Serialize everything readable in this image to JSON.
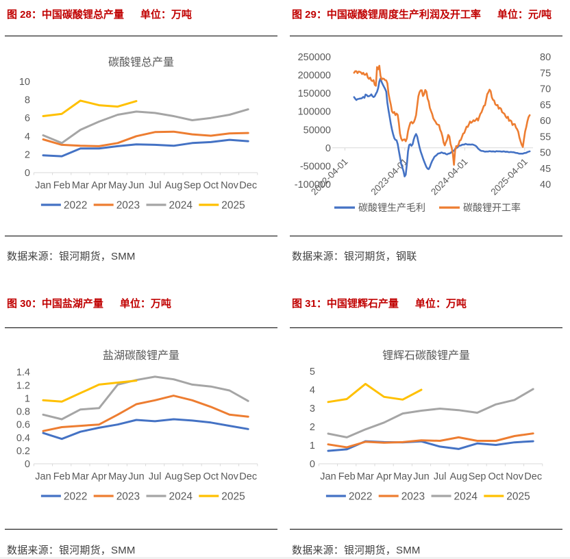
{
  "page": {
    "background": "#ffffff",
    "accent_red": "#C00000",
    "text_gray": "#595959",
    "source_text_color": "#404040",
    "axis_line_color": "#D9D9D9",
    "rule_color": "#000000"
  },
  "panels": [
    {
      "id": "fig28",
      "header": "图 28：中国碳酸锂总产量",
      "unit": "单位：万吨",
      "source": "数据来源：银河期货，SMM"
    },
    {
      "id": "fig29",
      "header": "图 29：中国碳酸锂周度生产利润及开工率",
      "unit": "单位：元/吨",
      "source": "数据来源：银河期货，钢联"
    },
    {
      "id": "fig30",
      "header": "图 30：中国盐湖产量",
      "unit": "单位：万吨",
      "source": "数据来源：银河期货，SMM"
    },
    {
      "id": "fig31",
      "header": "图 31：中国锂辉石产量",
      "unit": "单位：万吨",
      "source": "数据来源：银河期货，SMM"
    }
  ],
  "chart_data": [
    {
      "id": "fig28",
      "type": "line",
      "title": "碳酸锂总产量",
      "categories": [
        "Jan",
        "Feb",
        "Mar",
        "Apr",
        "May",
        "Jun",
        "Jul",
        "Aug",
        "Sep",
        "Oct",
        "Nov",
        "Dec"
      ],
      "series": [
        {
          "name": "2022",
          "color": "#4472C4",
          "values": [
            1.9,
            1.8,
            2.65,
            2.65,
            2.9,
            3.1,
            3.05,
            2.95,
            3.25,
            3.35,
            3.6,
            3.45
          ]
        },
        {
          "name": "2023",
          "color": "#ED7D31",
          "values": [
            3.65,
            3.05,
            2.95,
            2.9,
            3.25,
            4.0,
            4.45,
            4.5,
            4.2,
            4.05,
            4.3,
            4.35
          ]
        },
        {
          "name": "2024",
          "color": "#A5A5A5",
          "values": [
            4.1,
            3.25,
            4.7,
            5.6,
            6.35,
            6.7,
            6.55,
            6.2,
            5.75,
            6.0,
            6.35,
            6.95
          ]
        },
        {
          "name": "2025",
          "color": "#FFC000",
          "values": [
            6.2,
            6.45,
            7.9,
            7.4,
            7.25,
            7.85
          ]
        }
      ],
      "ylim": [
        0,
        10
      ],
      "yticks": [
        0,
        2,
        4,
        6,
        8,
        10
      ],
      "ytick_labels": [
        "0",
        "2",
        "4",
        "6",
        "8",
        "10"
      ],
      "xlabel": "",
      "ylabel": "",
      "grid": false,
      "legend_position": "bottom",
      "legend": [
        "2022",
        "2023",
        "2024",
        "2025"
      ]
    },
    {
      "id": "fig29",
      "type": "line",
      "title": "",
      "x": [
        "2022-05-27",
        "2022-06-03",
        "2022-06-10",
        "2022-06-17",
        "2022-06-24",
        "2022-07-01",
        "2022-07-08",
        "2022-07-15",
        "2022-07-22",
        "2022-07-29",
        "2022-08-05",
        "2022-08-12",
        "2022-08-19",
        "2022-08-26",
        "2022-09-02",
        "2022-09-09",
        "2022-09-16",
        "2022-09-23",
        "2022-09-30",
        "2022-10-07",
        "2022-10-14",
        "2022-10-21",
        "2022-10-28",
        "2022-11-04",
        "2022-11-11",
        "2022-11-18",
        "2022-11-25",
        "2022-12-02",
        "2022-12-09",
        "2022-12-16",
        "2022-12-23",
        "2022-12-30",
        "2023-01-06",
        "2023-01-13",
        "2023-01-20",
        "2023-01-27",
        "2023-02-03",
        "2023-02-10",
        "2023-02-17",
        "2023-02-24",
        "2023-03-03",
        "2023-03-10",
        "2023-03-17",
        "2023-03-24",
        "2023-03-31",
        "2023-04-07",
        "2023-04-14",
        "2023-04-21",
        "2023-04-28",
        "2023-05-05",
        "2023-05-12",
        "2023-05-19",
        "2023-05-26",
        "2023-06-02",
        "2023-06-09",
        "2023-06-16",
        "2023-06-23",
        "2023-06-30",
        "2023-07-07",
        "2023-07-14",
        "2023-07-21",
        "2023-07-28",
        "2023-08-04",
        "2023-08-11",
        "2023-08-18",
        "2023-08-25",
        "2023-09-01",
        "2023-09-08",
        "2023-09-15",
        "2023-09-22",
        "2023-09-29",
        "2023-10-06",
        "2023-10-13",
        "2023-10-20",
        "2023-10-27",
        "2023-11-03",
        "2023-11-10",
        "2023-11-17",
        "2023-11-24",
        "2023-12-01",
        "2023-12-08",
        "2023-12-15",
        "2023-12-22",
        "2023-12-29",
        "2024-01-05",
        "2024-01-12",
        "2024-01-19",
        "2024-01-26",
        "2024-02-02",
        "2024-02-09",
        "2024-02-16",
        "2024-02-23",
        "2024-03-01",
        "2024-03-08",
        "2024-03-15",
        "2024-03-22",
        "2024-03-29",
        "2024-04-05",
        "2024-04-12",
        "2024-04-19",
        "2024-04-26",
        "2024-05-03",
        "2024-05-10",
        "2024-05-17",
        "2024-05-24",
        "2024-05-31",
        "2024-06-07",
        "2024-06-14",
        "2024-06-21",
        "2024-06-28",
        "2024-07-05",
        "2024-07-12",
        "2024-07-19",
        "2024-07-26",
        "2024-08-02",
        "2024-08-09",
        "2024-08-16",
        "2024-08-23",
        "2024-08-30",
        "2024-09-06",
        "2024-09-13",
        "2024-09-20",
        "2024-09-27",
        "2024-10-04",
        "2024-10-11",
        "2024-10-18",
        "2024-10-25",
        "2024-11-01",
        "2024-11-08",
        "2024-11-15",
        "2024-11-22",
        "2024-11-29",
        "2024-12-06",
        "2024-12-13",
        "2024-12-20",
        "2024-12-27",
        "2025-01-03",
        "2025-01-10",
        "2025-01-17",
        "2025-01-24",
        "2025-01-31",
        "2025-02-07",
        "2025-02-14",
        "2025-02-21",
        "2025-02-28",
        "2025-03-07",
        "2025-03-14",
        "2025-03-21",
        "2025-03-28",
        "2025-04-04",
        "2025-04-11",
        "2025-04-18",
        "2025-04-25",
        "2025-05-02"
      ],
      "x_axis": {
        "start": "2022-01-14",
        "end": "2025-05-22",
        "ticks": [
          "2022-04-01",
          "2023-04-01",
          "2024-04-01",
          "2025-04-01"
        ]
      },
      "series": [
        {
          "name": "碳酸锂生产毛利",
          "axis": "left",
          "color": "#4472C4",
          "values": [
            139500,
            135000,
            131500,
            134000,
            134500,
            135500,
            135500,
            137000,
            140000,
            137500,
            146500,
            145000,
            141500,
            142000,
            143500,
            147000,
            142000,
            139500,
            142000,
            148500,
            154000,
            164500,
            182000,
            190500,
            181000,
            174000,
            168000,
            162000,
            154500,
            123500,
            103000,
            85000,
            66000,
            50500,
            37500,
            27000,
            22000,
            21000,
            10500,
            -8000,
            -25500,
            -43500,
            -53500,
            -63500,
            -78500,
            -73500,
            -44500,
            -9000,
            8000,
            10000,
            5500,
            10000,
            23500,
            32500,
            38000,
            31000,
            16000,
            2000,
            -10000,
            -19000,
            -28500,
            -37000,
            -45000,
            -52500,
            -57000,
            -58500,
            -52500,
            -43500,
            -36000,
            -30500,
            -24500,
            -22000,
            -19500,
            -16000,
            -15000,
            -14500,
            -12500,
            -13500,
            -15000,
            -14500,
            -17000,
            -18000,
            -16000,
            -15500,
            -14000,
            -11000,
            -9500,
            -7500,
            -3000,
            -500,
            1000,
            5000,
            6000,
            6500,
            8500,
            9000,
            9000,
            11000,
            10000,
            9000,
            9500,
            9000,
            9000,
            9500,
            8500,
            7000,
            5500,
            2500,
            -2000,
            -4500,
            -7000,
            -8500,
            -8500,
            -9500,
            -10500,
            -10000,
            -10000,
            -10000,
            -9000,
            -9500,
            -10000,
            -9500,
            -10000,
            -10500,
            -9000,
            -9500,
            -9500,
            -9500,
            -10000,
            -10500,
            -9500,
            -10000,
            -11000,
            -10500,
            -11000,
            -12000,
            -11500,
            -11500,
            -12000,
            -12000,
            -13000,
            -14000,
            -14000,
            -15000,
            -16000,
            -16000,
            -16000,
            -16000,
            -14500,
            -14000,
            -13500,
            -11500,
            -10500,
            -9500
          ]
        },
        {
          "name": "碳酸锂开工率",
          "axis": "right",
          "color": "#ED7D31",
          "values": [
            75.0,
            75.5,
            75.5,
            74.9,
            75.4,
            75.3,
            75.1,
            74.6,
            75.0,
            74.4,
            74.4,
            74.8,
            73.5,
            73.1,
            73.5,
            72.6,
            72.4,
            72.7,
            71.2,
            70.9,
            76.8,
            76.1,
            77.2,
            74.1,
            72.9,
            73.2,
            73.1,
            72.7,
            72.6,
            71.7,
            68.5,
            66.6,
            65.0,
            62.9,
            62.4,
            62.7,
            61.7,
            62.2,
            61.8,
            59.2,
            55.9,
            54.4,
            53.7,
            54.0,
            54.1,
            53.5,
            54.4,
            56.7,
            58.1,
            59.3,
            59.6,
            59.1,
            59.5,
            60.4,
            61.7,
            64.7,
            67.6,
            68.9,
            69.5,
            69.5,
            67.7,
            68.3,
            69.6,
            69.1,
            66.9,
            66.0,
            64.0,
            63.0,
            62.1,
            60.7,
            60.1,
            59.6,
            58.9,
            58.7,
            58.6,
            57.1,
            56.3,
            55.0,
            53.1,
            52.2,
            53.2,
            54.0,
            55.5,
            55.0,
            52.7,
            51.5,
            49.6,
            46.1,
            50.6,
            52.0,
            51.9,
            52.5,
            53.7,
            53.9,
            54.9,
            55.9,
            56.1,
            57.1,
            58.1,
            58.0,
            58.8,
            59.7,
            59.3,
            59.6,
            60.1,
            59.8,
            60.2,
            60.7,
            60.0,
            61.1,
            62.1,
            62.6,
            63.6,
            64.6,
            64.8,
            66.5,
            68.3,
            68.9,
            69.7,
            69.2,
            67.3,
            66.5,
            66.3,
            65.1,
            64.8,
            64.9,
            63.7,
            64.0,
            63.7,
            62.6,
            62.4,
            62.1,
            61.3,
            60.8,
            61.2,
            59.9,
            60.1,
            59.8,
            58.6,
            58.9,
            58.9,
            57.8,
            57.3,
            56.5,
            54.7,
            53.5,
            52.4,
            51.7,
            54.2,
            56.6,
            58.0,
            59.8,
            61.1,
            61.7
          ]
        }
      ],
      "ylim_left": [
        -100000,
        250000
      ],
      "yticks_left": [
        250000,
        200000,
        150000,
        100000,
        50000,
        0,
        -50000,
        -100000
      ],
      "ytick_labels_left": [
        "250000",
        "200000",
        "150000",
        "100000",
        "50000",
        "0",
        "-50000",
        "-100000"
      ],
      "ylim_right": [
        40,
        80
      ],
      "yticks_right": [
        80,
        75,
        70,
        65,
        60,
        55,
        50,
        45,
        40
      ],
      "ytick_labels_right": [
        "80",
        "75",
        "70",
        "65",
        "60",
        "55",
        "50",
        "45",
        "40"
      ],
      "grid": false,
      "legend_position": "bottom",
      "legend": [
        "碳酸锂生产毛利",
        "碳酸锂开工率"
      ],
      "zero_line": true
    },
    {
      "id": "fig30",
      "type": "line",
      "title": "盐湖碳酸锂产量",
      "categories": [
        "Jan",
        "Feb",
        "Mar",
        "Apr",
        "May",
        "Jun",
        "Jul",
        "Aug",
        "Sep",
        "Oct",
        "Nov",
        "Dec"
      ],
      "series": [
        {
          "name": "2022",
          "color": "#4472C4",
          "values": [
            0.47,
            0.38,
            0.49,
            0.55,
            0.6,
            0.67,
            0.65,
            0.68,
            0.66,
            0.63,
            0.58,
            0.53
          ]
        },
        {
          "name": "2023",
          "color": "#ED7D31",
          "values": [
            0.5,
            0.56,
            0.58,
            0.6,
            0.75,
            0.91,
            0.97,
            1.04,
            0.97,
            0.87,
            0.75,
            0.72
          ]
        },
        {
          "name": "2024",
          "color": "#A5A5A5",
          "values": [
            0.75,
            0.68,
            0.83,
            0.85,
            1.21,
            1.28,
            1.33,
            1.29,
            1.21,
            1.18,
            1.12,
            0.96
          ]
        },
        {
          "name": "2025",
          "color": "#FFC000",
          "values": [
            0.97,
            0.95,
            1.08,
            1.21,
            1.24,
            1.27
          ]
        }
      ],
      "ylim": [
        0,
        1.4
      ],
      "yticks": [
        0,
        0.2,
        0.4,
        0.6,
        0.8,
        1,
        1.2,
        1.4
      ],
      "ytick_labels": [
        "0",
        "0.2",
        "0.4",
        "0.6",
        "0.8",
        "1",
        "1.2",
        "1.4"
      ],
      "xlabel": "",
      "ylabel": "",
      "grid": false,
      "legend_position": "bottom",
      "legend": [
        "2022",
        "2023",
        "2024",
        "2025"
      ]
    },
    {
      "id": "fig31",
      "type": "line",
      "title": "锂辉石碳酸锂产量",
      "categories": [
        "Jan",
        "Feb",
        "Mar",
        "Apr",
        "May",
        "Jun",
        "Jul",
        "Aug",
        "Sep",
        "Oct",
        "Nov",
        "Dec"
      ],
      "series": [
        {
          "name": "2022",
          "color": "#4472C4",
          "values": [
            0.7,
            0.78,
            1.22,
            1.17,
            1.16,
            1.21,
            0.93,
            0.8,
            1.1,
            1.02,
            1.16,
            1.22
          ]
        },
        {
          "name": "2023",
          "color": "#ED7D31",
          "values": [
            1.05,
            0.89,
            1.19,
            1.14,
            1.17,
            1.27,
            1.24,
            1.43,
            1.24,
            1.24,
            1.5,
            1.64
          ]
        },
        {
          "name": "2024",
          "color": "#A5A5A5",
          "values": [
            1.63,
            1.43,
            1.86,
            2.23,
            2.72,
            2.87,
            2.98,
            2.9,
            2.76,
            3.21,
            3.45,
            4.04
          ]
        },
        {
          "name": "2025",
          "color": "#FFC000",
          "values": [
            3.34,
            3.5,
            4.32,
            3.62,
            3.47,
            4.0
          ]
        }
      ],
      "ylim": [
        0,
        5
      ],
      "yticks": [
        0,
        1,
        2,
        3,
        4,
        5
      ],
      "ytick_labels": [
        "0",
        "1",
        "2",
        "3",
        "4",
        "5"
      ],
      "xlabel": "",
      "ylabel": "",
      "grid": false,
      "legend_position": "bottom",
      "legend": [
        "2022",
        "2023",
        "2024",
        "2025"
      ]
    }
  ]
}
